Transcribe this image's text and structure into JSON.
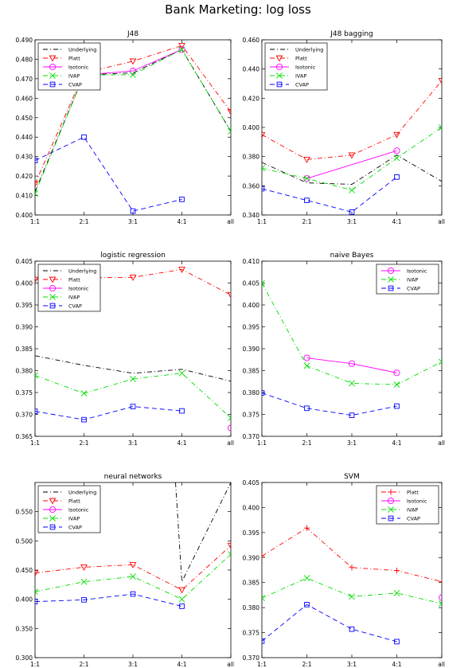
{
  "title": "Bank Marketing: log loss",
  "colors": {
    "Underlying": "#000000",
    "Platt": "#ff0000",
    "Isotonic": "#ff00ff",
    "IVAP": "#00dd00",
    "CVAP": "#0000ff"
  },
  "markers": {
    "Underlying": "none",
    "Platt": "triangle-down",
    "Isotonic": "circle",
    "IVAP": "x",
    "CVAP": "square"
  },
  "dashes": {
    "Underlying": "dash-dot",
    "Platt": "dash-dot",
    "Isotonic": "solid",
    "IVAP": "dash-dot",
    "CVAP": "dashed"
  },
  "chart_data": [
    {
      "type": "line",
      "title": "J48",
      "xlabel": "",
      "ylabel": "",
      "categories": [
        "1:1",
        "2:1",
        "3:1",
        "4:1",
        "all"
      ],
      "ylim": [
        0.4,
        0.49
      ],
      "yticks": [
        0.4,
        0.41,
        0.42,
        0.43,
        0.44,
        0.45,
        0.46,
        0.47,
        0.48,
        0.49
      ],
      "ytick_labels": [
        "0.400",
        "0.410",
        "0.420",
        "0.430",
        "0.440",
        "0.450",
        "0.460",
        "0.470",
        "0.480",
        "0.490"
      ],
      "legend": "top-left",
      "legend_entries": [
        "Underlying",
        "Platt",
        "Isotonic",
        "IVAP",
        "CVAP"
      ],
      "series": [
        {
          "name": "Underlying",
          "values": [
            0.412,
            0.472,
            0.473,
            0.485,
            0.443
          ]
        },
        {
          "name": "Platt",
          "values": [
            0.416,
            0.473,
            0.479,
            0.487,
            0.453
          ]
        },
        {
          "name": "Isotonic",
          "values": [
            null,
            0.472,
            0.474,
            0.485,
            null
          ]
        },
        {
          "name": "IVAP",
          "values": [
            0.411,
            0.472,
            0.472,
            0.485,
            0.443
          ]
        },
        {
          "name": "CVAP",
          "values": [
            0.428,
            0.44,
            0.402,
            0.408,
            null
          ]
        }
      ]
    },
    {
      "type": "line",
      "title": "J48 bagging",
      "xlabel": "",
      "ylabel": "",
      "categories": [
        "1:1",
        "2:1",
        "3:1",
        "4:1",
        "all"
      ],
      "ylim": [
        0.34,
        0.46
      ],
      "yticks": [
        0.34,
        0.36,
        0.38,
        0.4,
        0.42,
        0.44,
        0.46
      ],
      "ytick_labels": [
        "0.340",
        "0.360",
        "0.380",
        "0.400",
        "0.420",
        "0.440",
        "0.460"
      ],
      "legend": "top-left",
      "legend_entries": [
        "Underlying",
        "Platt",
        "Isotonic",
        "IVAP",
        "CVAP"
      ],
      "series": [
        {
          "name": "Underlying",
          "values": [
            0.376,
            0.362,
            0.361,
            0.381,
            0.363
          ]
        },
        {
          "name": "Platt",
          "values": [
            0.395,
            0.378,
            0.381,
            0.395,
            0.432
          ]
        },
        {
          "name": "Isotonic",
          "values": [
            null,
            0.365,
            null,
            0.384,
            null
          ]
        },
        {
          "name": "IVAP",
          "values": [
            0.372,
            0.365,
            0.357,
            0.379,
            0.4
          ]
        },
        {
          "name": "CVAP",
          "values": [
            0.358,
            0.35,
            0.342,
            0.366,
            null
          ]
        }
      ]
    },
    {
      "type": "line",
      "title": "logistic regression",
      "xlabel": "",
      "ylabel": "",
      "categories": [
        "1:1",
        "2:1",
        "3:1",
        "4:1",
        "all"
      ],
      "ylim": [
        0.365,
        0.405
      ],
      "yticks": [
        0.365,
        0.37,
        0.375,
        0.38,
        0.385,
        0.39,
        0.395,
        0.4,
        0.405
      ],
      "ytick_labels": [
        "0.365",
        "0.370",
        "0.375",
        "0.380",
        "0.385",
        "0.390",
        "0.395",
        "0.400",
        "0.405"
      ],
      "legend": "top-left",
      "legend_entries": [
        "Underlying",
        "Platt",
        "Isotonic",
        "IVAP",
        "CVAP"
      ],
      "series": [
        {
          "name": "Underlying",
          "values": [
            0.3834,
            0.3812,
            0.3794,
            0.3803,
            0.3776
          ]
        },
        {
          "name": "Platt",
          "values": [
            0.4008,
            0.4012,
            0.4013,
            0.4031,
            0.3973
          ]
        },
        {
          "name": "Isotonic",
          "values": [
            null,
            null,
            null,
            null,
            0.3669
          ]
        },
        {
          "name": "IVAP",
          "values": [
            0.3789,
            0.3748,
            0.3781,
            0.3794,
            0.3692
          ]
        },
        {
          "name": "CVAP",
          "values": [
            0.3707,
            0.3688,
            0.3718,
            0.3708,
            null
          ]
        }
      ]
    },
    {
      "type": "line",
      "title": "naive Bayes",
      "xlabel": "",
      "ylabel": "",
      "categories": [
        "1:1",
        "2:1",
        "3:1",
        "4:1",
        "all"
      ],
      "ylim": [
        0.37,
        0.41
      ],
      "yticks": [
        0.37,
        0.375,
        0.38,
        0.385,
        0.39,
        0.395,
        0.4,
        0.405,
        0.41
      ],
      "ytick_labels": [
        "0.370",
        "0.375",
        "0.380",
        "0.385",
        "0.390",
        "0.395",
        "0.400",
        "0.405",
        "0.410"
      ],
      "legend": "top-right",
      "legend_entries": [
        "Isotonic",
        "IVAP",
        "CVAP"
      ],
      "series": [
        {
          "name": "Isotonic",
          "values": [
            null,
            0.3879,
            0.3866,
            0.3845,
            null
          ]
        },
        {
          "name": "IVAP",
          "values": [
            0.405,
            0.3861,
            0.3821,
            0.3818,
            0.387
          ]
        },
        {
          "name": "CVAP",
          "values": [
            0.3799,
            0.3764,
            0.3748,
            0.3769,
            null
          ]
        }
      ]
    },
    {
      "type": "line",
      "title": "neural networks",
      "xlabel": "",
      "ylabel": "",
      "categories": [
        "1:1",
        "2:1",
        "3:1",
        "4:1",
        "all"
      ],
      "ylim": [
        0.3,
        0.6
      ],
      "yticks": [
        0.3,
        0.35,
        0.4,
        0.45,
        0.5,
        0.55
      ],
      "ytick_labels": [
        "0.300",
        "0.350",
        "0.400",
        "0.450",
        "0.500",
        "0.550"
      ],
      "legend": "top-left",
      "legend_entries": [
        "Underlying",
        "Platt",
        "Isotonic",
        "IVAP",
        "CVAP"
      ],
      "series": [
        {
          "name": "Underlying",
          "values": [
            null,
            null,
            null,
            0.43,
            null
          ]
        },
        {
          "name": "Platt",
          "values": [
            0.445,
            0.455,
            0.459,
            0.416,
            0.492
          ]
        },
        {
          "name": "Isotonic",
          "values": [
            null,
            null,
            null,
            null,
            null
          ]
        },
        {
          "name": "IVAP",
          "values": [
            0.413,
            0.43,
            0.439,
            0.4,
            0.477
          ]
        },
        {
          "name": "CVAP",
          "values": [
            0.396,
            0.399,
            0.409,
            0.388,
            null
          ]
        }
      ]
    },
    {
      "type": "line",
      "title": "SVM",
      "xlabel": "",
      "ylabel": "",
      "categories": [
        "1:1",
        "2:1",
        "3:1",
        "4:1",
        "all"
      ],
      "ylim": [
        0.37,
        0.405
      ],
      "yticks": [
        0.37,
        0.375,
        0.38,
        0.385,
        0.39,
        0.395,
        0.4,
        0.405
      ],
      "ytick_labels": [
        "0.370",
        "0.375",
        "0.380",
        "0.385",
        "0.390",
        "0.395",
        "0.400",
        "0.405"
      ],
      "legend": "top-right",
      "legend_entries": [
        "Platt",
        "Isotonic",
        "IVAP",
        "CVAP"
      ],
      "series": [
        {
          "name": "Platt",
          "values": [
            0.3903,
            0.3959,
            0.388,
            0.3874,
            0.3852
          ]
        },
        {
          "name": "Isotonic",
          "values": [
            null,
            null,
            null,
            null,
            0.382
          ]
        },
        {
          "name": "IVAP",
          "values": [
            0.3819,
            0.3859,
            0.3822,
            0.3829,
            0.3808
          ]
        },
        {
          "name": "CVAP",
          "values": [
            0.3733,
            0.3806,
            0.3757,
            0.3732,
            null
          ]
        }
      ]
    }
  ]
}
